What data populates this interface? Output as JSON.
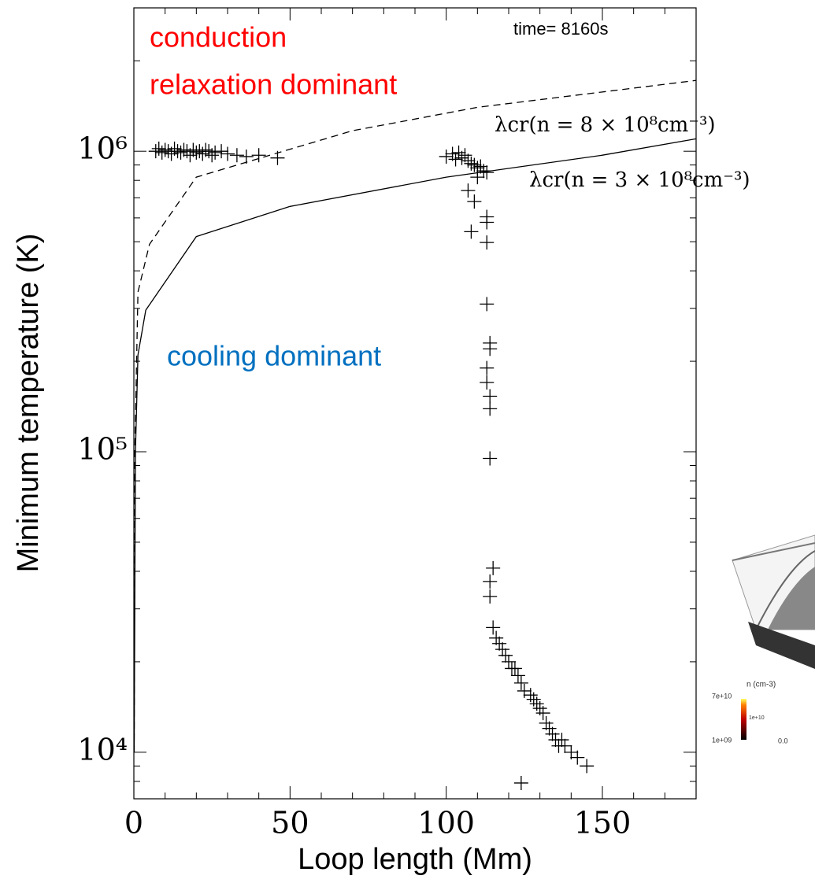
{
  "chart_data": {
    "type": "scatter",
    "x_label": "Loop length (Mm)",
    "y_label": "Minimum temperature (K)",
    "yscale": "log",
    "xlim": [
      0,
      180
    ],
    "ylim": [
      7000,
      3000000
    ],
    "xticks": [
      0,
      50,
      100,
      150
    ],
    "xminorticks": [
      10,
      20,
      30,
      40,
      60,
      70,
      80,
      90,
      110,
      120,
      130,
      140,
      160,
      170
    ],
    "yticks": [
      {
        "value": 10000,
        "label": "10⁴"
      },
      {
        "value": 100000,
        "label": "10⁵"
      },
      {
        "value": 1000000,
        "label": "10⁶"
      }
    ],
    "yminorticks": [
      8000,
      9000,
      20000,
      30000,
      40000,
      50000,
      60000,
      70000,
      80000,
      90000,
      200000,
      300000,
      400000,
      500000,
      600000,
      700000,
      800000,
      900000,
      2000000
    ],
    "color": "#000000",
    "marker": "+",
    "x": [
      7,
      8,
      9,
      10,
      11,
      12,
      13,
      14,
      15,
      16,
      17,
      18,
      19,
      20,
      21,
      22,
      23,
      24,
      25,
      26,
      28,
      30,
      33,
      36,
      40,
      46,
      100,
      102,
      103,
      104,
      105,
      106,
      107,
      108,
      109,
      110,
      111,
      112,
      113,
      110,
      107,
      109,
      108,
      113,
      113,
      113,
      113,
      114,
      114,
      113,
      113,
      114,
      114,
      114,
      115,
      114,
      114,
      115,
      116,
      117,
      118,
      119,
      120,
      121,
      122,
      123,
      124,
      125,
      127,
      128,
      129,
      130,
      131,
      132,
      133,
      134,
      135,
      136,
      137,
      138,
      140,
      142,
      145,
      124
    ],
    "values": [
      1000000,
      1020000,
      990000,
      1010000,
      1000000,
      980000,
      1020000,
      1000000,
      990000,
      1010000,
      1000000,
      970000,
      1010000,
      990000,
      1000000,
      980000,
      1010000,
      1000000,
      970000,
      990000,
      1000000,
      980000,
      970000,
      960000,
      970000,
      950000,
      960000,
      980000,
      940000,
      990000,
      950000,
      970000,
      930000,
      910000,
      900000,
      880000,
      890000,
      860000,
      850000,
      820000,
      740000,
      680000,
      540000,
      605000,
      580000,
      497000,
      310000,
      230000,
      220000,
      190000,
      170000,
      153000,
      139000,
      95000,
      41000,
      37000,
      33000,
      26000,
      24000,
      23000,
      22000,
      21000,
      20000,
      19000,
      19000,
      18000,
      17000,
      16000,
      15500,
      15000,
      14500,
      14000,
      13500,
      12500,
      12000,
      11500,
      11000,
      10500,
      11000,
      10500,
      10000,
      9600,
      9000,
      7900
    ],
    "curves": [
      {
        "name": "λcr(n = 8 × 10⁸cm⁻³)",
        "style": "dashed",
        "color": "#000000",
        "x": [
          0.1,
          0.3,
          1.3,
          5,
          20,
          45,
          70,
          110,
          180
        ],
        "values": [
          10000,
          100000,
          340000,
          490000,
          820000,
          980000,
          1170000,
          1400000,
          1720000
        ]
      },
      {
        "name": "λcr(n = 3 × 10⁸cm⁻³)",
        "style": "solid",
        "color": "#000000",
        "x": [
          0.1,
          0.5,
          1.3,
          3.8,
          20,
          50,
          100,
          150,
          180
        ],
        "values": [
          10000,
          100000,
          210000,
          296000,
          520000,
          655000,
          820000,
          970000,
          1100000
        ]
      }
    ],
    "annotations": [
      {
        "text": "conduction",
        "color": "#ff0000"
      },
      {
        "text": "relaxation dominant",
        "color": "#ff0000"
      },
      {
        "text": "cooling dominant",
        "color": "#0070c0"
      },
      {
        "text": "time= 8160s",
        "color": "#000000"
      }
    ]
  },
  "inset": {
    "colorbar_title": "n (cm-3)",
    "colorbar_labels": [
      "7e+10",
      "1e+10",
      "1e+09"
    ],
    "axis_label": "0.0"
  }
}
